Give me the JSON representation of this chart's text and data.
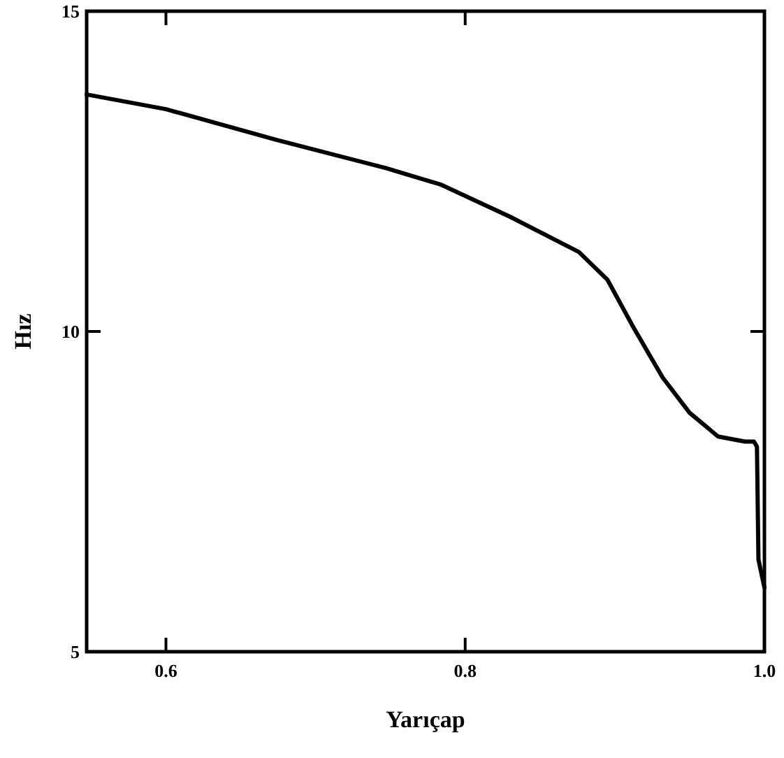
{
  "chart_data": {
    "type": "line",
    "xlabel": "Yarıçap",
    "ylabel": "Hız",
    "xlim": [
      0.547,
      1.0
    ],
    "ylim": [
      5,
      15
    ],
    "xticks": [
      0.6,
      0.8,
      {
        "value": 1.0,
        "label": "1.0"
      }
    ],
    "yticks": [
      5,
      10,
      15
    ],
    "grid": false,
    "marker": "none",
    "line_style": "solid",
    "series": [
      {
        "color": "#000000",
        "x": [
          0.547,
          0.6,
          0.674,
          0.747,
          0.784,
          0.83,
          0.876,
          0.895,
          0.913,
          0.932,
          0.95,
          0.969,
          0.987,
          0.993,
          0.995,
          0.996,
          1.0
        ],
        "values": [
          13.7,
          13.47,
          12.99,
          12.55,
          12.29,
          11.79,
          11.24,
          10.81,
          10.04,
          9.28,
          8.73,
          8.36,
          8.28,
          8.28,
          8.2,
          6.44,
          6.0
        ]
      }
    ]
  }
}
